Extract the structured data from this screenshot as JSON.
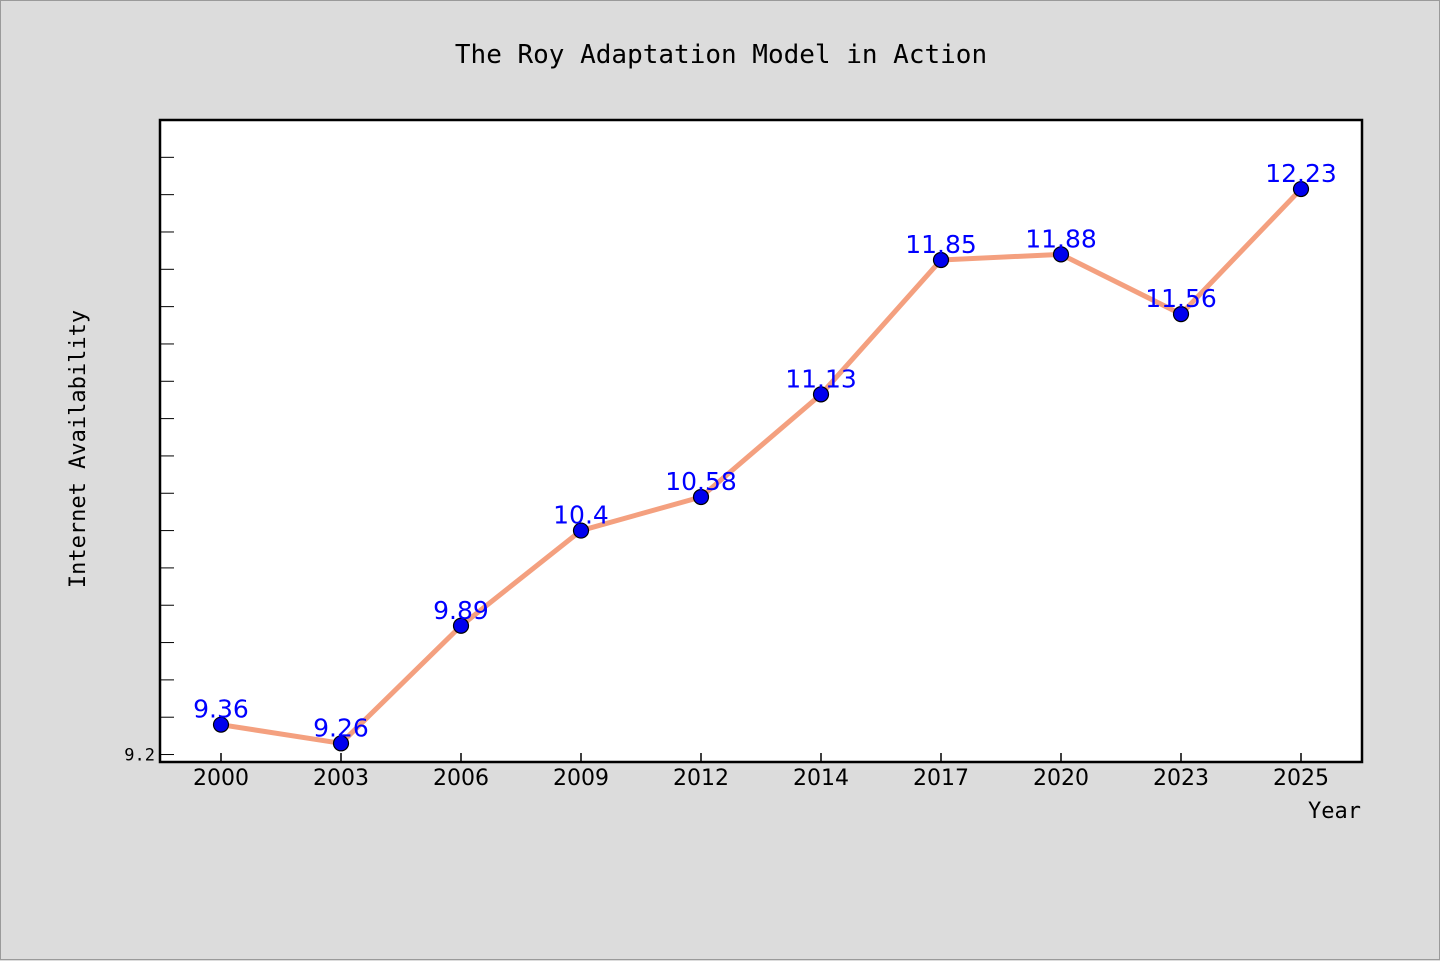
{
  "chart_data": {
    "type": "line",
    "title": "The Roy Adaptation Model in Action",
    "xlabel": "Year",
    "ylabel": "Internet Availability",
    "categories": [
      "2000",
      "2003",
      "2006",
      "2009",
      "2012",
      "2014",
      "2017",
      "2020",
      "2023",
      "2025"
    ],
    "series": [
      {
        "values": [
          9.36,
          9.26,
          9.89,
          10.4,
          10.58,
          11.13,
          11.85,
          11.88,
          11.56,
          12.23
        ]
      }
    ],
    "y_tick_labels": [
      "9.2"
    ],
    "ylim": [
      9.16,
      12.6
    ],
    "grid": false,
    "legend": "none",
    "colors": {
      "line": "#f4a07f",
      "marker": "#0000ee",
      "data_label": "#0000ff",
      "background": "#dcdcdc",
      "plot_background": "#ffffff"
    }
  }
}
